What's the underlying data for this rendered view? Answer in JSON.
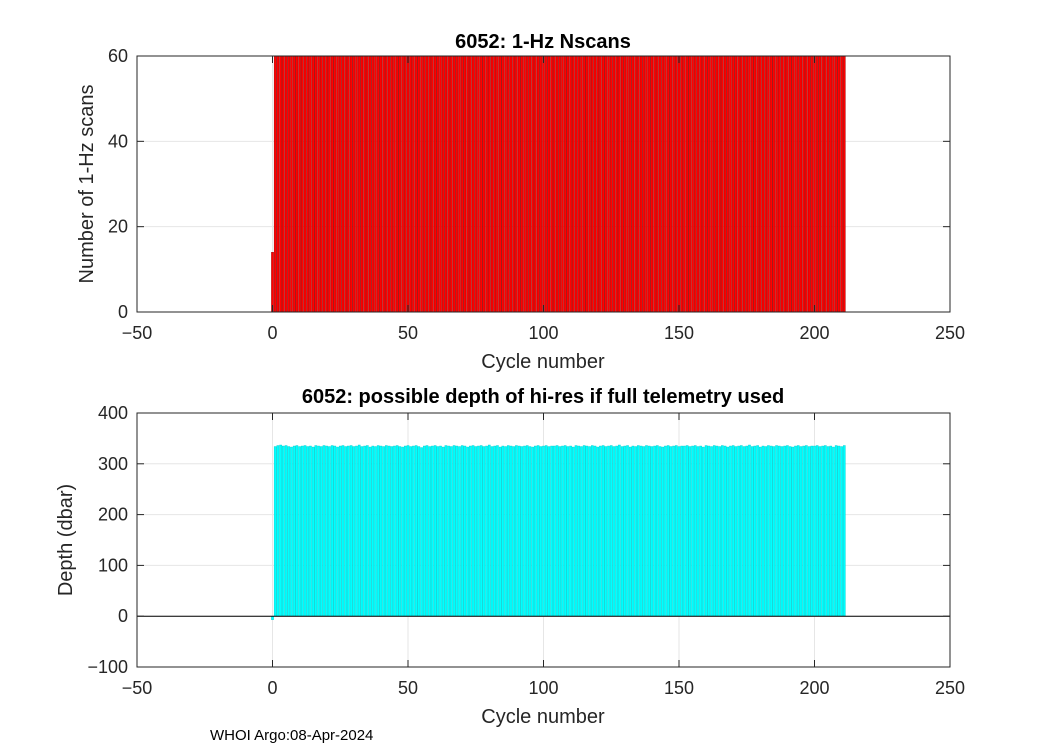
{
  "footer": {
    "label": "WHOI Argo:08-Apr-2024"
  },
  "chart_data": [
    {
      "type": "bar",
      "title": "6052: 1-Hz Nscans",
      "xlabel": "Cycle number",
      "ylabel": "Number of 1-Hz scans",
      "xlim": [
        -50,
        250
      ],
      "ylim": [
        0,
        60
      ],
      "xticks": [
        -50,
        0,
        50,
        100,
        150,
        200,
        250
      ],
      "yticks": [
        0,
        20,
        40,
        60
      ],
      "grid": true,
      "color": "#ff0000",
      "edge_color": "#8b0000",
      "series": [
        {
          "name": "Nscans",
          "note": "cycle 0 = 14 scans; cycles 1-211 each >= 60 scans (clipped at the 60 axis limit)",
          "first_cycle": 0,
          "last_cycle": 211,
          "cycle0_value": 14,
          "default_value": 60
        }
      ]
    },
    {
      "type": "bar",
      "title": "6052: possible depth of hi-res if full telemetry used",
      "xlabel": "Cycle number",
      "ylabel": "Depth (dbar)",
      "xlim": [
        -50,
        250
      ],
      "ylim": [
        -100,
        400
      ],
      "xticks": [
        -50,
        0,
        50,
        100,
        150,
        200,
        250
      ],
      "yticks": [
        -100,
        0,
        100,
        200,
        300,
        400
      ],
      "grid": true,
      "zero_line": true,
      "color": "#00ffff",
      "edge_color": "#00cccc",
      "series": [
        {
          "name": "Depth",
          "first_cycle": 0,
          "last_cycle": 211,
          "cycle0_value": -7,
          "values": [
            -7,
            334,
            336,
            337,
            335,
            336,
            334,
            333,
            335,
            336,
            334,
            335,
            336,
            334,
            335,
            333,
            336,
            335,
            334,
            336,
            335,
            334,
            336,
            335,
            333,
            335,
            336,
            334,
            335,
            336,
            334,
            335,
            337,
            334,
            335,
            336,
            333,
            335,
            334,
            336,
            335,
            334,
            336,
            335,
            334,
            335,
            336,
            334,
            333,
            335,
            336,
            334,
            335,
            336,
            334,
            332,
            335,
            336,
            334,
            335,
            336,
            334,
            335,
            333,
            336,
            335,
            334,
            336,
            335,
            334,
            336,
            335,
            333,
            335,
            336,
            334,
            335,
            336,
            334,
            335,
            337,
            334,
            335,
            336,
            333,
            335,
            334,
            336,
            335,
            334,
            336,
            335,
            334,
            335,
            336,
            334,
            333,
            335,
            336,
            334,
            335,
            336,
            334,
            335,
            335,
            336,
            334,
            335,
            336,
            334,
            335,
            333,
            336,
            335,
            334,
            336,
            335,
            334,
            336,
            335,
            333,
            335,
            336,
            334,
            335,
            336,
            334,
            335,
            337,
            334,
            335,
            336,
            333,
            335,
            334,
            336,
            335,
            334,
            336,
            335,
            334,
            335,
            336,
            334,
            333,
            335,
            336,
            334,
            335,
            336,
            334,
            335,
            335,
            336,
            334,
            335,
            336,
            334,
            335,
            333,
            336,
            335,
            334,
            336,
            335,
            334,
            336,
            335,
            333,
            335,
            336,
            334,
            335,
            336,
            334,
            335,
            337,
            334,
            335,
            336,
            333,
            335,
            334,
            336,
            335,
            334,
            336,
            335,
            334,
            335,
            336,
            334,
            333,
            335,
            336,
            334,
            335,
            336,
            334,
            335,
            335,
            336,
            334,
            335,
            336,
            334,
            335,
            333,
            336,
            335,
            334,
            336
          ]
        }
      ]
    }
  ]
}
